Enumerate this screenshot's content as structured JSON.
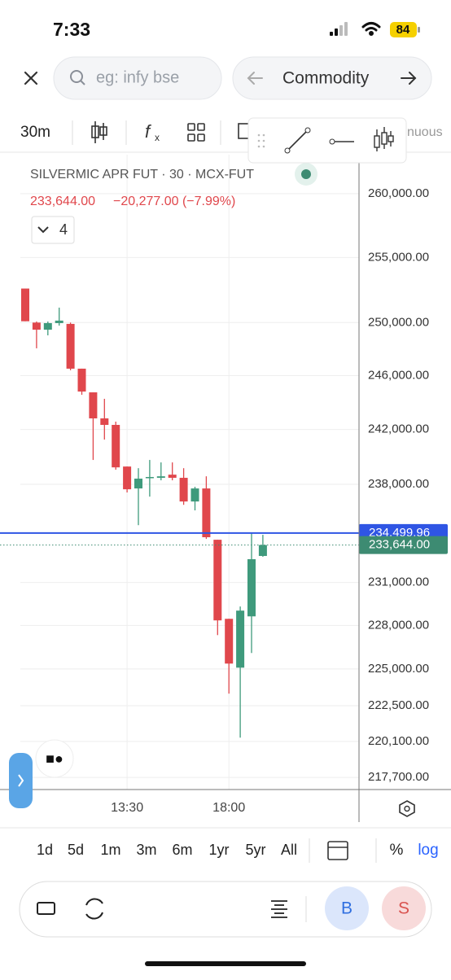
{
  "status": {
    "time": "7:33",
    "battery": "84"
  },
  "search": {
    "placeholder": "eg: infy bse",
    "segment": "Commodity"
  },
  "toolbar": {
    "interval": "30m",
    "overflow": "nuous"
  },
  "legend": {
    "symbol": "SILVERMIC APR FUT · 30 · MCX-FUT",
    "price": "233,644.00",
    "change": "−20,277.00 (−7.99%)",
    "indicators": "4"
  },
  "ranges": [
    "1d",
    "5d",
    "1m",
    "3m",
    "6m",
    "1yr",
    "5yr",
    "All"
  ],
  "scale_buttons": {
    "percent": "%",
    "log": "log"
  },
  "trade": {
    "buy": "B",
    "sell": "S"
  },
  "chart_data": {
    "type": "candlestick",
    "categories": [
      null,
      null,
      null,
      null,
      null,
      null,
      null,
      null,
      null,
      "13:30",
      null,
      null,
      null,
      null,
      null,
      null,
      null,
      null,
      "18:00",
      null,
      null,
      null
    ],
    "open": [
      252600,
      250000,
      249460,
      249960,
      249900,
      246520,
      244750,
      242820,
      242340,
      239290,
      237700,
      238470,
      238470,
      238700,
      238470,
      236760,
      237700,
      234020,
      228460,
      225090,
      228630,
      232870
    ],
    "high": [
      252600,
      250080,
      250080,
      251140,
      250000,
      246520,
      244750,
      244270,
      242580,
      239290,
      239170,
      239770,
      239590,
      239590,
      239170,
      237820,
      238580,
      234020,
      228460,
      229320,
      234480,
      234370
    ],
    "low": [
      250100,
      248050,
      249030,
      249770,
      246400,
      244570,
      239770,
      241260,
      239060,
      237410,
      235060,
      237110,
      238290,
      238290,
      236520,
      236120,
      234080,
      227330,
      223320,
      220350,
      226100,
      232810
    ],
    "close": [
      250100,
      249460,
      249960,
      250150,
      246520,
      244810,
      242820,
      242340,
      239230,
      237640,
      238410,
      238530,
      238580,
      238470,
      236760,
      237700,
      234200,
      228350,
      225370,
      229030,
      232640,
      233644
    ],
    "up_color": "#3f9a7c",
    "down_color": "#e0474c",
    "log_scale": true,
    "grid": true,
    "ylim": [
      216900,
      263100
    ],
    "yticks": [
      {
        "value": 260000,
        "label": "260,000.00"
      },
      {
        "value": 255000,
        "label": "255,000.00"
      },
      {
        "value": 250000,
        "label": "250,000.00"
      },
      {
        "value": 246000,
        "label": "246,000.00"
      },
      {
        "value": 242000,
        "label": "242,000.00"
      },
      {
        "value": 238000,
        "label": "238,000.00"
      },
      {
        "value": 231000,
        "label": "231,000.00"
      },
      {
        "value": 228000,
        "label": "228,000.00"
      },
      {
        "value": 225000,
        "label": "225,000.00"
      },
      {
        "value": 222500,
        "label": "222,500.00"
      },
      {
        "value": 220100,
        "label": "220,100.00"
      },
      {
        "value": 217700,
        "label": "217,700.00"
      }
    ],
    "price_line": {
      "value": 234499.96,
      "label": "234,499.96",
      "color": "#2f55e4"
    },
    "last_price": {
      "value": 233644,
      "label": "233,644.00",
      "color": "#3d8b72"
    }
  }
}
